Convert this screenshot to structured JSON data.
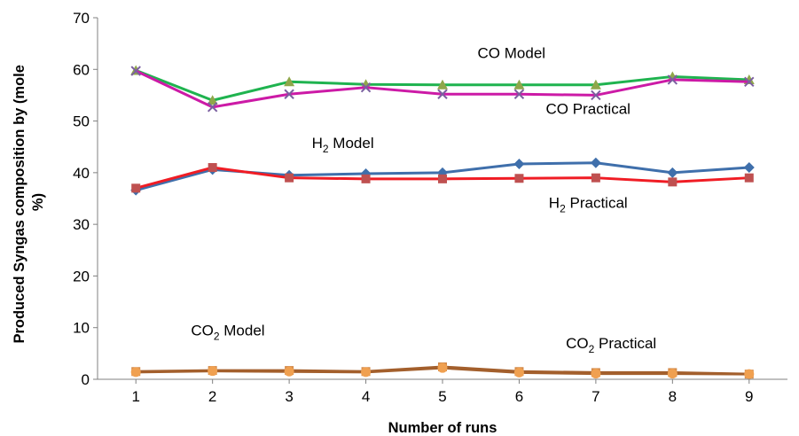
{
  "chart_data": {
    "type": "line",
    "title": "",
    "xlabel": "Number of runs",
    "ylabel_lines": [
      "Produced Syngas composition by (mole",
      "%)"
    ],
    "x": [
      1,
      2,
      3,
      4,
      5,
      6,
      7,
      8,
      9
    ],
    "xlim": [
      0.5,
      9.5
    ],
    "ylim": [
      0,
      70
    ],
    "y_ticks": [
      0,
      10,
      20,
      30,
      40,
      50,
      60,
      70
    ],
    "grid": false,
    "series": [
      {
        "name": "CO Model",
        "color": "#1fb34f",
        "marker": "triangle",
        "marker_color": "#8fa74a",
        "values": [
          59.8,
          54.0,
          57.6,
          57.1,
          57.0,
          57.0,
          57.0,
          58.6,
          58.0
        ]
      },
      {
        "name": "CO Practical",
        "color": "#cc1aa6",
        "marker": "x",
        "marker_color": "#7b5fa0",
        "values": [
          59.7,
          52.7,
          55.2,
          56.5,
          55.2,
          55.2,
          55.0,
          58.0,
          57.6
        ]
      },
      {
        "name": "H2 Model",
        "color": "#3f6fab",
        "marker": "diamond",
        "marker_color": "#3f6fab",
        "values": [
          36.6,
          40.6,
          39.5,
          39.8,
          40.0,
          41.7,
          41.9,
          40.0,
          41.0
        ]
      },
      {
        "name": "H2 Practical",
        "color": "#f01c24",
        "marker": "square",
        "marker_color": "#bf5050",
        "values": [
          37.0,
          41.0,
          39.0,
          38.8,
          38.8,
          38.9,
          39.0,
          38.2,
          39.0
        ]
      },
      {
        "name": "CO2 Model",
        "color": "#a35f2c",
        "marker": "square",
        "marker_color": "#d38a4a",
        "values": [
          1.5,
          1.7,
          1.7,
          1.5,
          2.4,
          1.5,
          1.3,
          1.3,
          1.0
        ]
      },
      {
        "name": "CO2 Practical",
        "color": "#a35f2c",
        "marker": "circle",
        "marker_color": "#f0a050",
        "values": [
          1.4,
          1.6,
          1.5,
          1.4,
          2.2,
          1.3,
          1.1,
          1.1,
          1.0
        ]
      }
    ],
    "annotations": [
      {
        "base": "CO Model",
        "sub": "",
        "tail": "",
        "x": 5.9,
        "y": 62.2
      },
      {
        "base": "CO Practical",
        "sub": "",
        "tail": "",
        "x": 6.9,
        "y": 51.4
      },
      {
        "base": "H",
        "sub": "2",
        "tail": " Model",
        "x": 3.7,
        "y": 44.8
      },
      {
        "base": "H",
        "sub": "2",
        "tail": " Practical",
        "x": 6.9,
        "y": 33.2
      },
      {
        "base": "CO",
        "sub": "2",
        "tail": " Model",
        "x": 2.2,
        "y": 8.5
      },
      {
        "base": "CO",
        "sub": "2",
        "tail": " Practical",
        "x": 7.2,
        "y": 6.0
      }
    ]
  }
}
